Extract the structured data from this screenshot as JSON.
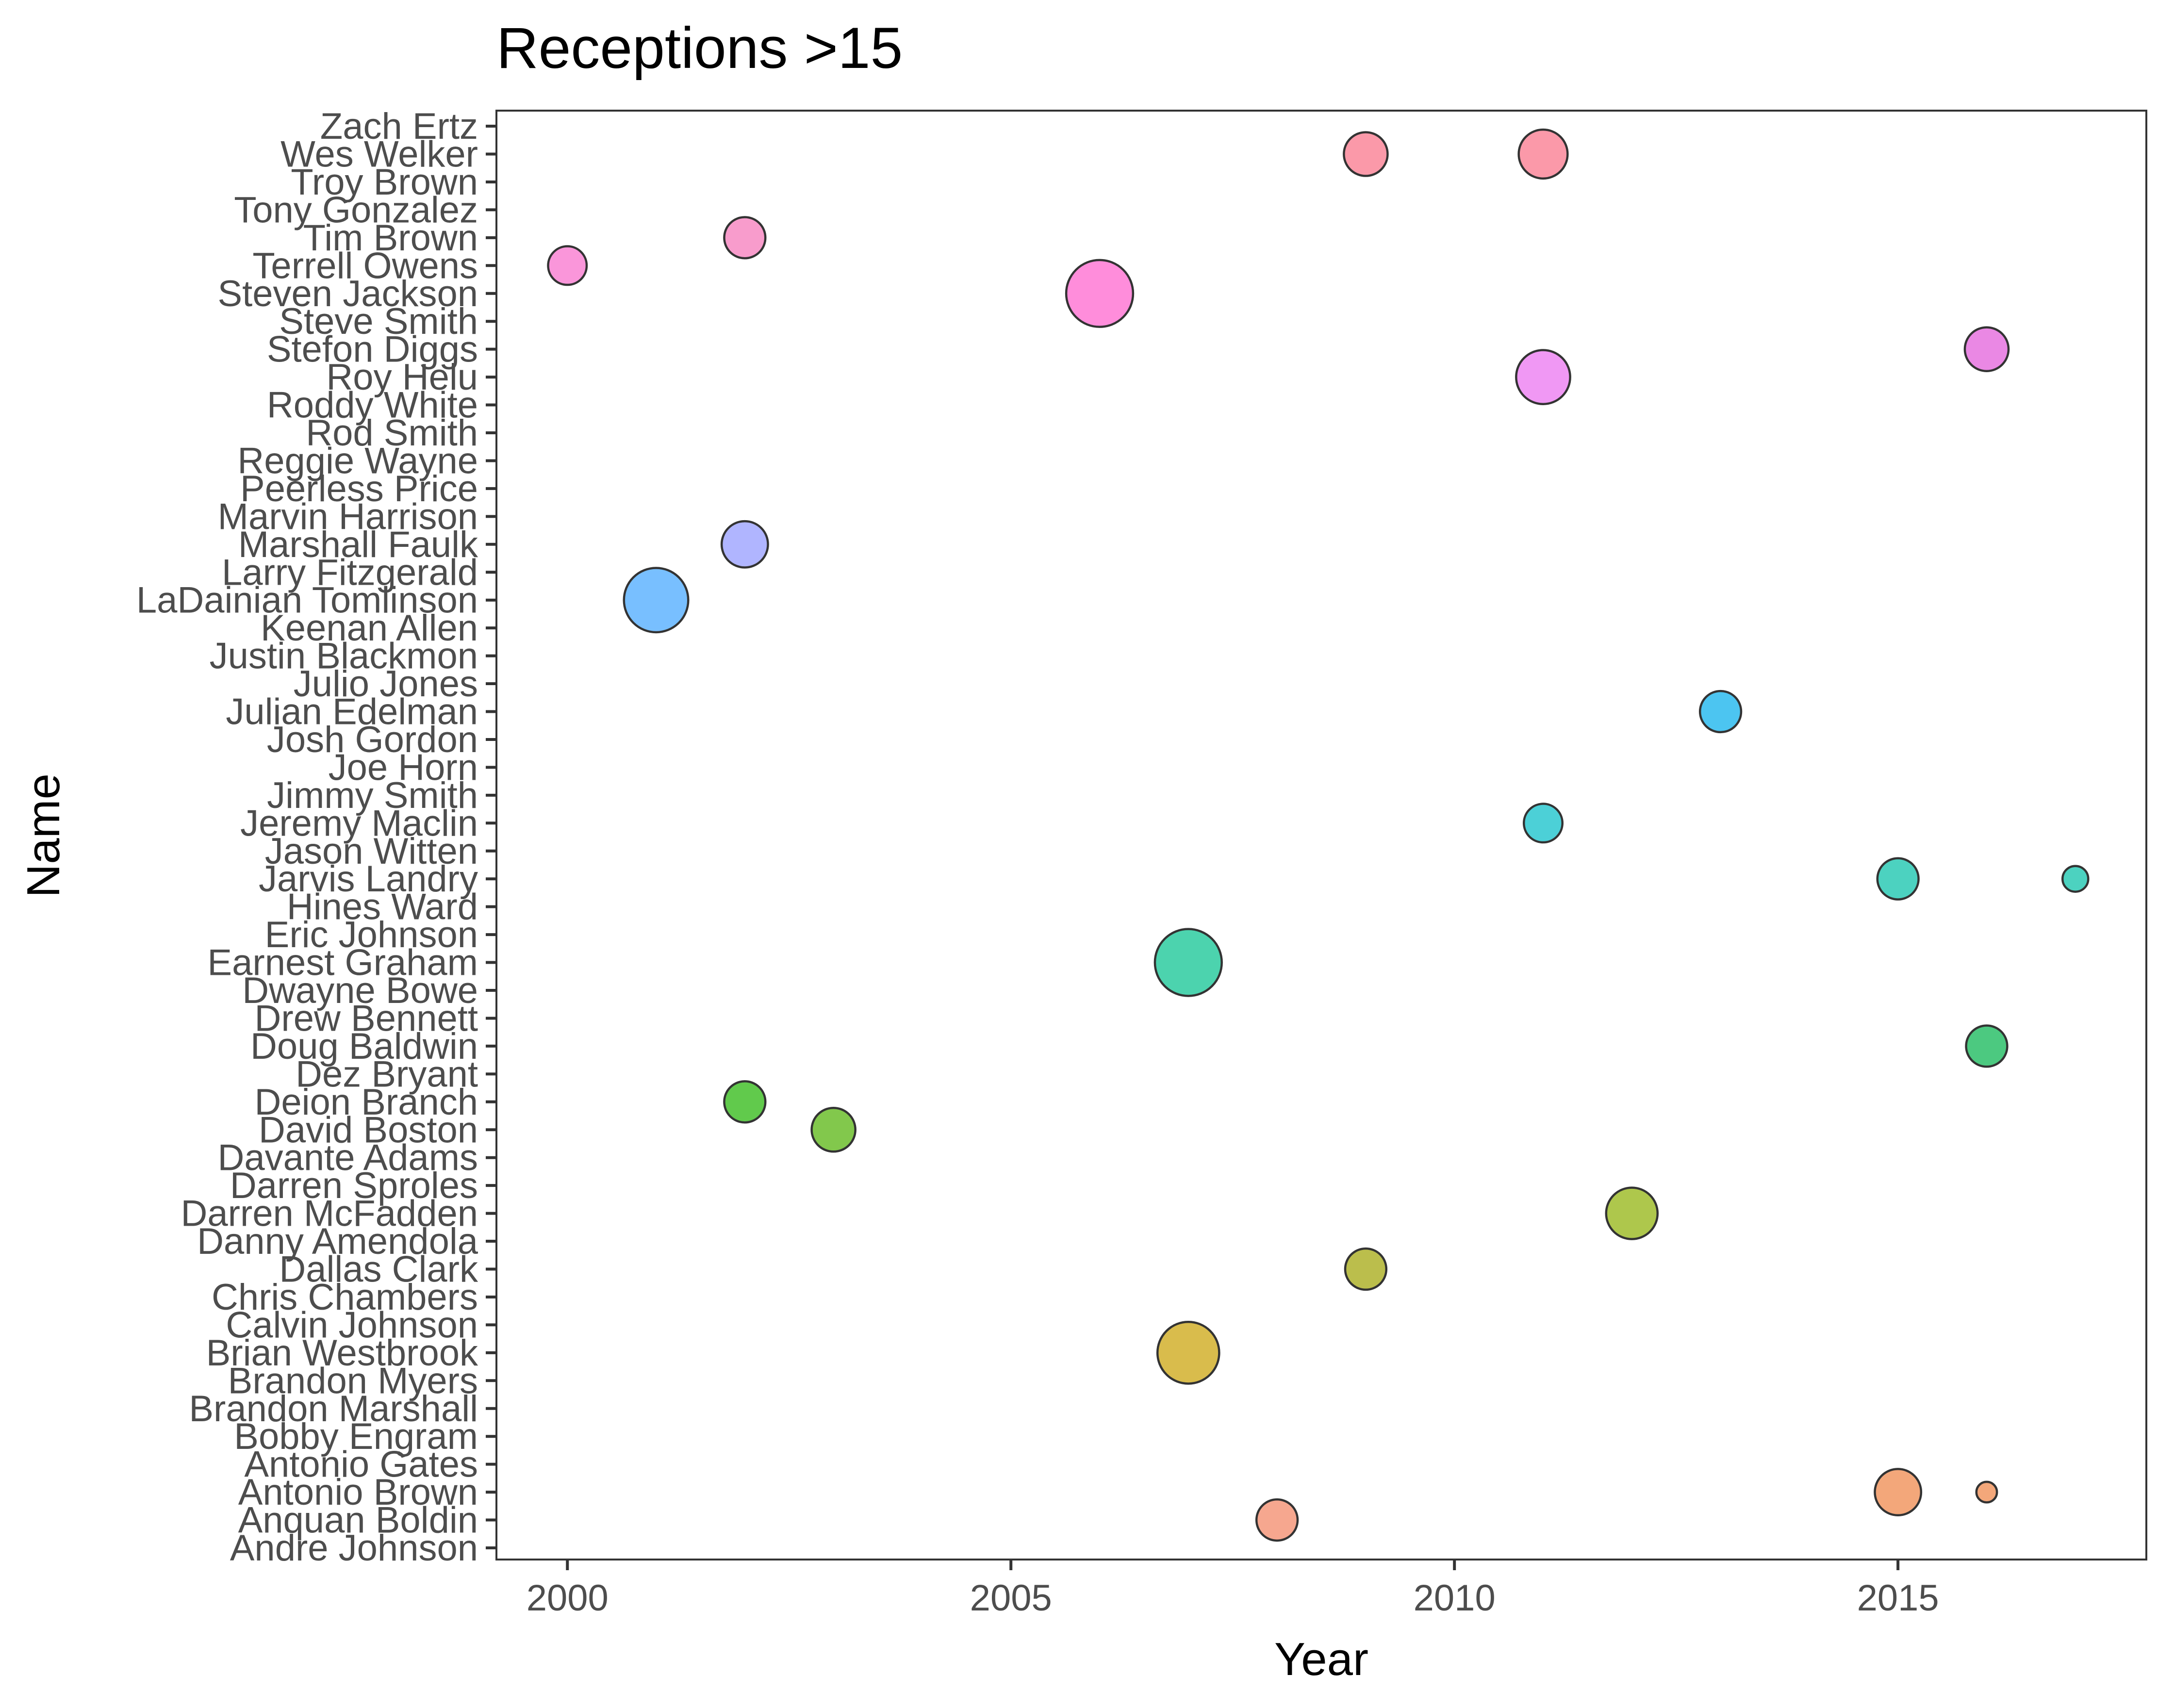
{
  "chart_data": {
    "type": "scatter",
    "title": "Receptions >15",
    "xlabel": "Year",
    "ylabel": "Name",
    "xlim": [
      1999.2,
      2017.8
    ],
    "x_ticks": [
      2000,
      2005,
      2010,
      2015
    ],
    "grid": false,
    "legend": "none",
    "categories": [
      "Andre Johnson",
      "Anquan Boldin",
      "Antonio Brown",
      "Antonio Gates",
      "Bobby Engram",
      "Brandon Marshall",
      "Brandon Myers",
      "Brian Westbrook",
      "Calvin Johnson",
      "Chris Chambers",
      "Dallas Clark",
      "Danny Amendola",
      "Darren McFadden",
      "Darren Sproles",
      "Davante Adams",
      "David Boston",
      "Deion Branch",
      "Dez Bryant",
      "Doug Baldwin",
      "Drew Bennett",
      "Dwayne Bowe",
      "Earnest Graham",
      "Eric Johnson",
      "Hines Ward",
      "Jarvis Landry",
      "Jason Witten",
      "Jeremy Maclin",
      "Jimmy Smith",
      "Joe Horn",
      "Josh Gordon",
      "Julian Edelman",
      "Julio Jones",
      "Justin Blackmon",
      "Keenan Allen",
      "LaDainian Tomlinson",
      "Larry Fitzgerald",
      "Marshall Faulk",
      "Marvin Harrison",
      "Peerless Price",
      "Reggie Wayne",
      "Rod Smith",
      "Roddy White",
      "Roy Helu",
      "Stefon Diggs",
      "Steve Smith",
      "Steven Jackson",
      "Terrell Owens",
      "Tim Brown",
      "Tony Gonzalez",
      "Troy Brown",
      "Wes Welker",
      "Zach Ertz"
    ],
    "points": [
      {
        "name": "Anquan Boldin",
        "year": 2008,
        "size": 16,
        "color": "#F2815F"
      },
      {
        "name": "Antonio Brown",
        "year": 2015,
        "size": 18,
        "color": "#EE8142"
      },
      {
        "name": "Antonio Brown",
        "year": 2016,
        "size": 8,
        "color": "#EE8142"
      },
      {
        "name": "Brian Westbrook",
        "year": 2007,
        "size": 24,
        "color": "#C9A000"
      },
      {
        "name": "Dallas Clark",
        "year": 2009,
        "size": 16,
        "color": "#9EA300"
      },
      {
        "name": "Darren McFadden",
        "year": 2012,
        "size": 20,
        "color": "#8BAF00"
      },
      {
        "name": "David Boston",
        "year": 2003,
        "size": 17,
        "color": "#4DB000"
      },
      {
        "name": "Deion Branch",
        "year": 2002,
        "size": 16,
        "color": "#1EB300"
      },
      {
        "name": "Doug Baldwin",
        "year": 2016,
        "size": 16,
        "color": "#00B24A"
      },
      {
        "name": "Earnest Graham",
        "year": 2007,
        "size": 26,
        "color": "#00C08B"
      },
      {
        "name": "Jarvis Landry",
        "year": 2015,
        "size": 16,
        "color": "#00BFA5"
      },
      {
        "name": "Jarvis Landry",
        "year": 2017,
        "size": 10,
        "color": "#00BFA5"
      },
      {
        "name": "Jeremy Maclin",
        "year": 2011,
        "size": 15,
        "color": "#00BCC6"
      },
      {
        "name": "Julian Edelman",
        "year": 2013,
        "size": 16,
        "color": "#00ADEB"
      },
      {
        "name": "LaDainian Tomlinson",
        "year": 2001,
        "size": 25,
        "color": "#3FA4FF"
      },
      {
        "name": "Marshall Faulk",
        "year": 2002,
        "size": 18,
        "color": "#8F95FF"
      },
      {
        "name": "Roy Helu",
        "year": 2011,
        "size": 21,
        "color": "#EA6CF0"
      },
      {
        "name": "Stefon Diggs",
        "year": 2016,
        "size": 17,
        "color": "#E155D8"
      },
      {
        "name": "Steven Jackson",
        "year": 2006,
        "size": 26,
        "color": "#FF5DCC"
      },
      {
        "name": "Terrell Owens",
        "year": 2000,
        "size": 15,
        "color": "#F86ACA"
      },
      {
        "name": "Tim Brown",
        "year": 2002,
        "size": 16,
        "color": "#F572B6"
      },
      {
        "name": "Wes Welker",
        "year": 2009,
        "size": 17,
        "color": "#F96E85"
      },
      {
        "name": "Wes Welker",
        "year": 2011,
        "size": 19,
        "color": "#F96E85"
      }
    ]
  }
}
